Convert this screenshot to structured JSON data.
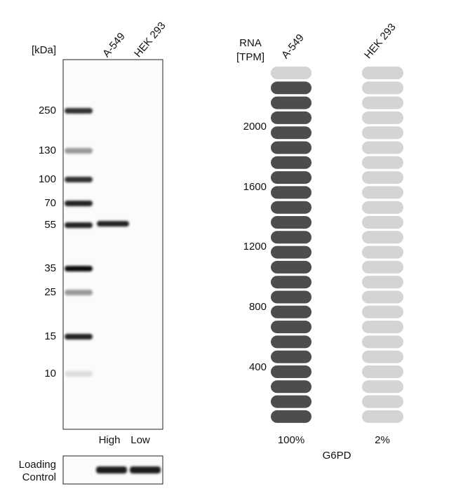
{
  "blot": {
    "unit_label": "[kDa]",
    "lanes": [
      "A-549",
      "HEK 293"
    ],
    "markers": [
      250,
      130,
      100,
      70,
      55,
      35,
      25,
      15,
      10
    ],
    "levels": [
      "High",
      "Low"
    ],
    "loading_control": [
      "Loading",
      "Control"
    ]
  },
  "rna": {
    "axis_label": [
      "RNA",
      "[TPM]"
    ],
    "cell_lines": [
      "A-549",
      "HEK 293"
    ],
    "ticks": [
      2000,
      1600,
      1200,
      800,
      400
    ],
    "percentages": [
      "100%",
      "2%"
    ],
    "gene": "G6PD"
  }
}
